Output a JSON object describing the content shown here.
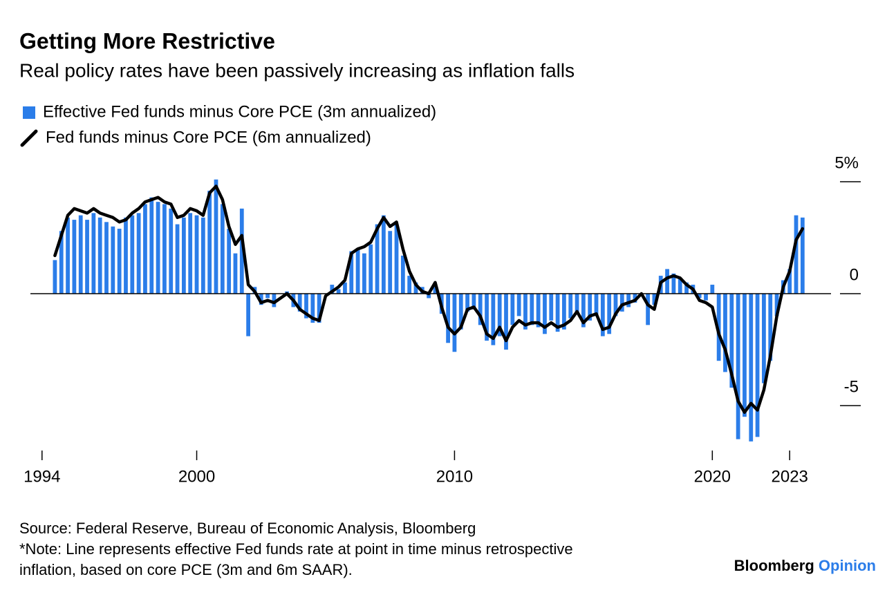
{
  "chart_data": {
    "type": "bar-line",
    "title": "Getting More Restrictive",
    "subtitle": "Real policy rates have been passively increasing as inflation falls",
    "source": "Source: Federal Reserve, Bureau of Economic Analysis, Bloomberg",
    "note_line1": "*Note: Line represents effective Fed funds rate at point in time minus retrospective",
    "note_line2": "inflation, based on core PCE (3m and 6m SAAR).",
    "brand": "Bloomberg",
    "brand_sub": "Opinion",
    "x": [
      1994.5,
      1994.75,
      1995,
      1995.25,
      1995.5,
      1995.75,
      1996,
      1996.25,
      1996.5,
      1996.75,
      1997,
      1997.25,
      1997.5,
      1997.75,
      1998,
      1998.25,
      1998.5,
      1998.75,
      1999,
      1999.25,
      1999.5,
      1999.75,
      2000,
      2000.25,
      2000.5,
      2000.75,
      2001,
      2001.25,
      2001.5,
      2001.75,
      2002,
      2002.25,
      2002.5,
      2002.75,
      2003,
      2003.25,
      2003.5,
      2003.75,
      2004,
      2004.25,
      2004.5,
      2004.75,
      2005,
      2005.25,
      2005.5,
      2005.75,
      2006,
      2006.25,
      2006.5,
      2006.75,
      2007,
      2007.25,
      2007.5,
      2007.75,
      2008,
      2008.25,
      2008.5,
      2008.75,
      2009,
      2009.25,
      2009.5,
      2009.75,
      2010,
      2010.25,
      2010.5,
      2010.75,
      2011,
      2011.25,
      2011.5,
      2011.75,
      2012,
      2012.25,
      2012.5,
      2012.75,
      2013,
      2013.25,
      2013.5,
      2013.75,
      2014,
      2014.25,
      2014.5,
      2014.75,
      2015,
      2015.25,
      2015.5,
      2015.75,
      2016,
      2016.25,
      2016.5,
      2016.75,
      2017,
      2017.25,
      2017.5,
      2017.75,
      2018,
      2018.25,
      2018.5,
      2018.75,
      2019,
      2019.25,
      2019.5,
      2019.75,
      2020,
      2020.25,
      2020.5,
      2020.75,
      2021,
      2021.25,
      2021.5,
      2021.75,
      2022,
      2022.25,
      2022.5,
      2022.75,
      2023,
      2023.25,
      2023.5
    ],
    "series": [
      {
        "name": "Effective Fed funds minus Core PCE (3m annualized)",
        "color": "#2b7de9",
        "kind": "bar",
        "values": [
          1.5,
          2.8,
          3.4,
          3.3,
          3.5,
          3.3,
          3.6,
          3.4,
          3.2,
          3.0,
          2.9,
          3.4,
          3.5,
          3.6,
          4.0,
          4.3,
          4.1,
          4.0,
          3.8,
          3.1,
          3.4,
          3.6,
          3.5,
          3.4,
          4.6,
          5.1,
          4.0,
          2.9,
          1.8,
          3.8,
          -1.9,
          0.3,
          -0.5,
          -0.2,
          -0.6,
          0.0,
          0.1,
          -0.6,
          -0.8,
          -1.1,
          -1.3,
          -1.3,
          0.0,
          0.4,
          0.2,
          0.5,
          1.9,
          2.0,
          1.8,
          2.2,
          3.1,
          3.5,
          2.8,
          3.1,
          1.7,
          0.8,
          0.5,
          0.3,
          -0.2,
          0.3,
          -0.9,
          -2.2,
          -2.6,
          -1.6,
          -0.8,
          -0.7,
          -1.4,
          -2.1,
          -2.3,
          -1.9,
          -2.5,
          -1.4,
          -1.0,
          -1.6,
          -1.4,
          -1.5,
          -1.8,
          -1.2,
          -1.7,
          -1.6,
          -1.1,
          -0.9,
          -1.5,
          -1.2,
          -1.0,
          -1.9,
          -1.8,
          -1.0,
          -0.8,
          -0.6,
          -0.4,
          -0.1,
          -1.4,
          -0.5,
          0.8,
          1.1,
          0.9,
          0.7,
          0.5,
          0.4,
          -0.2,
          -0.3,
          0.4,
          -3.0,
          -3.5,
          -4.2,
          -6.5,
          -5.5,
          -6.6,
          -6.4,
          -4.0,
          -3.0,
          -1.0,
          0.6,
          1.1,
          3.5,
          3.4
        ]
      },
      {
        "name": "Fed funds minus Core PCE (6m annualized)",
        "color": "#000000",
        "kind": "line",
        "values": [
          1.7,
          2.6,
          3.5,
          3.8,
          3.7,
          3.6,
          3.8,
          3.6,
          3.5,
          3.4,
          3.2,
          3.3,
          3.6,
          3.8,
          4.1,
          4.2,
          4.3,
          4.1,
          4.0,
          3.4,
          3.5,
          3.8,
          3.7,
          3.5,
          4.5,
          4.8,
          4.2,
          3.0,
          2.2,
          2.6,
          0.4,
          0.1,
          -0.4,
          -0.3,
          -0.4,
          -0.2,
          0.0,
          -0.3,
          -0.7,
          -0.9,
          -1.1,
          -1.2,
          -0.1,
          0.1,
          0.3,
          0.6,
          1.8,
          2.0,
          2.1,
          2.3,
          2.9,
          3.4,
          3.0,
          3.2,
          2.0,
          1.0,
          0.4,
          0.1,
          0.0,
          0.5,
          -0.6,
          -1.5,
          -1.8,
          -1.5,
          -0.7,
          -0.6,
          -1.0,
          -1.8,
          -2.0,
          -1.5,
          -2.1,
          -1.5,
          -1.2,
          -1.4,
          -1.3,
          -1.3,
          -1.5,
          -1.3,
          -1.5,
          -1.4,
          -1.2,
          -0.8,
          -1.3,
          -1.0,
          -0.9,
          -1.6,
          -1.5,
          -0.9,
          -0.5,
          -0.4,
          -0.3,
          0.0,
          -0.5,
          -0.7,
          0.5,
          0.7,
          0.8,
          0.7,
          0.4,
          0.2,
          -0.3,
          -0.4,
          -0.6,
          -1.8,
          -2.5,
          -3.6,
          -4.8,
          -5.3,
          -4.9,
          -5.2,
          -4.3,
          -2.8,
          -1.0,
          0.3,
          1.0,
          2.4,
          2.9
        ]
      }
    ],
    "xlim": [
      1993.55,
      2024.55
    ],
    "xticks": [
      1994,
      2000,
      2010,
      2020,
      2023
    ],
    "ylim": [
      -7,
      5.7
    ],
    "yticks": [
      {
        "value": 5,
        "label": "5%"
      },
      0,
      -5
    ]
  }
}
